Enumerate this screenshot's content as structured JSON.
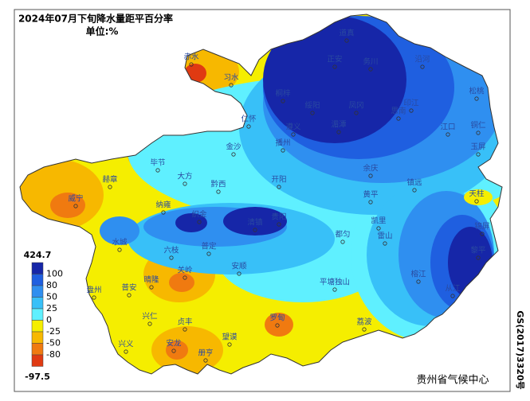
{
  "title": "2024年07月下旬降水量距平百分率",
  "unit": "单位:%",
  "legend": {
    "max": "424.7",
    "min": "-97.5",
    "labels": [
      "100",
      "80",
      "50",
      "25",
      "0",
      "-25",
      "-50",
      "-80"
    ],
    "colors": [
      "#1626a8",
      "#1f5fe0",
      "#2f8ff0",
      "#38c0f8",
      "#5ff0ff",
      "#f5ee00",
      "#f7b800",
      "#f07a10",
      "#e03a12"
    ]
  },
  "cities": [
    "道真",
    "正安",
    "务川",
    "沿河",
    "赤水",
    "习水",
    "桐梓",
    "绥阳",
    "凤冈",
    "印江",
    "松桃",
    "思南",
    "湄潭",
    "仁怀",
    "遵义",
    "江口",
    "铜仁",
    "播州",
    "金沙",
    "余庆",
    "玉屏",
    "毕节",
    "赫章",
    "大方",
    "黔西",
    "开阳",
    "镇远",
    "天柱",
    "威宁",
    "纳雍",
    "织金",
    "清镇",
    "贵阳",
    "黄平",
    "凯里",
    "锦屏",
    "水城",
    "六枝",
    "普定",
    "安顺",
    "黎平",
    "雷山",
    "都匀",
    "盘州",
    "晴隆",
    "关岭",
    "普安",
    "平塘独山",
    "榕江",
    "从江",
    "兴仁",
    "贞丰",
    "望谟",
    "罗甸",
    "荔波",
    "兴义",
    "安龙",
    "册亨"
  ],
  "footer": "贵州省气候中心",
  "code": "GS(2017)3320号"
}
